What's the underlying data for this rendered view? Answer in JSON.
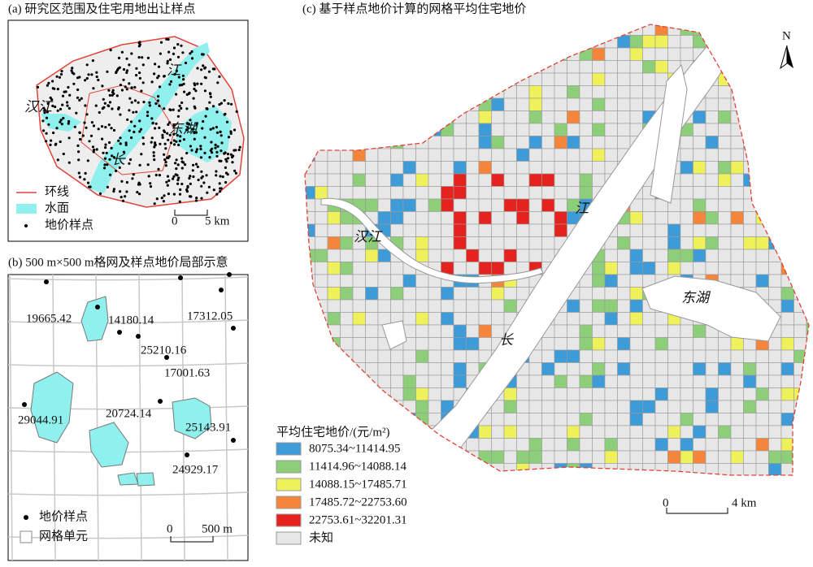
{
  "panel_a": {
    "title": "(a) 研究区范围及住宅用地出让样点",
    "labels": [
      "汉江",
      "江",
      "长",
      "东湖"
    ],
    "legend": [
      "环线",
      "水面",
      "地价样点"
    ],
    "scale": [
      "0",
      "5 km"
    ]
  },
  "panel_b": {
    "title": "(b) 500 m×500 m格网及样点地价局部示意",
    "samples": [
      "19665.42",
      "14180.14",
      "17312.05",
      "25210.16",
      "17001.63",
      "29044.91",
      "20724.14",
      "25143.91",
      "24929.17"
    ],
    "legend": [
      "地价样点",
      "网格单元"
    ],
    "scale": [
      "0",
      "500 m"
    ]
  },
  "panel_c": {
    "title": "(c) 基于样点地价计算的网格平均住宅地价",
    "north": "N",
    "labels": [
      "江",
      "汉江",
      "东湖",
      "长"
    ],
    "legend_title": "平均住宅地价/(元/m²)",
    "classes": [
      {
        "label": "8075.34~11414.95",
        "color": "#3d9bd8"
      },
      {
        "label": "11414.96~14088.14",
        "color": "#8ccf78"
      },
      {
        "label": "14088.15~17485.71",
        "color": "#eef159"
      },
      {
        "label": "17485.72~22753.60",
        "color": "#f5853a"
      },
      {
        "label": "22753.61~32201.31",
        "color": "#e5221d"
      },
      {
        "label": "未知",
        "color": "#e7e7e7"
      }
    ],
    "scale": [
      "0",
      "4 km"
    ]
  }
}
